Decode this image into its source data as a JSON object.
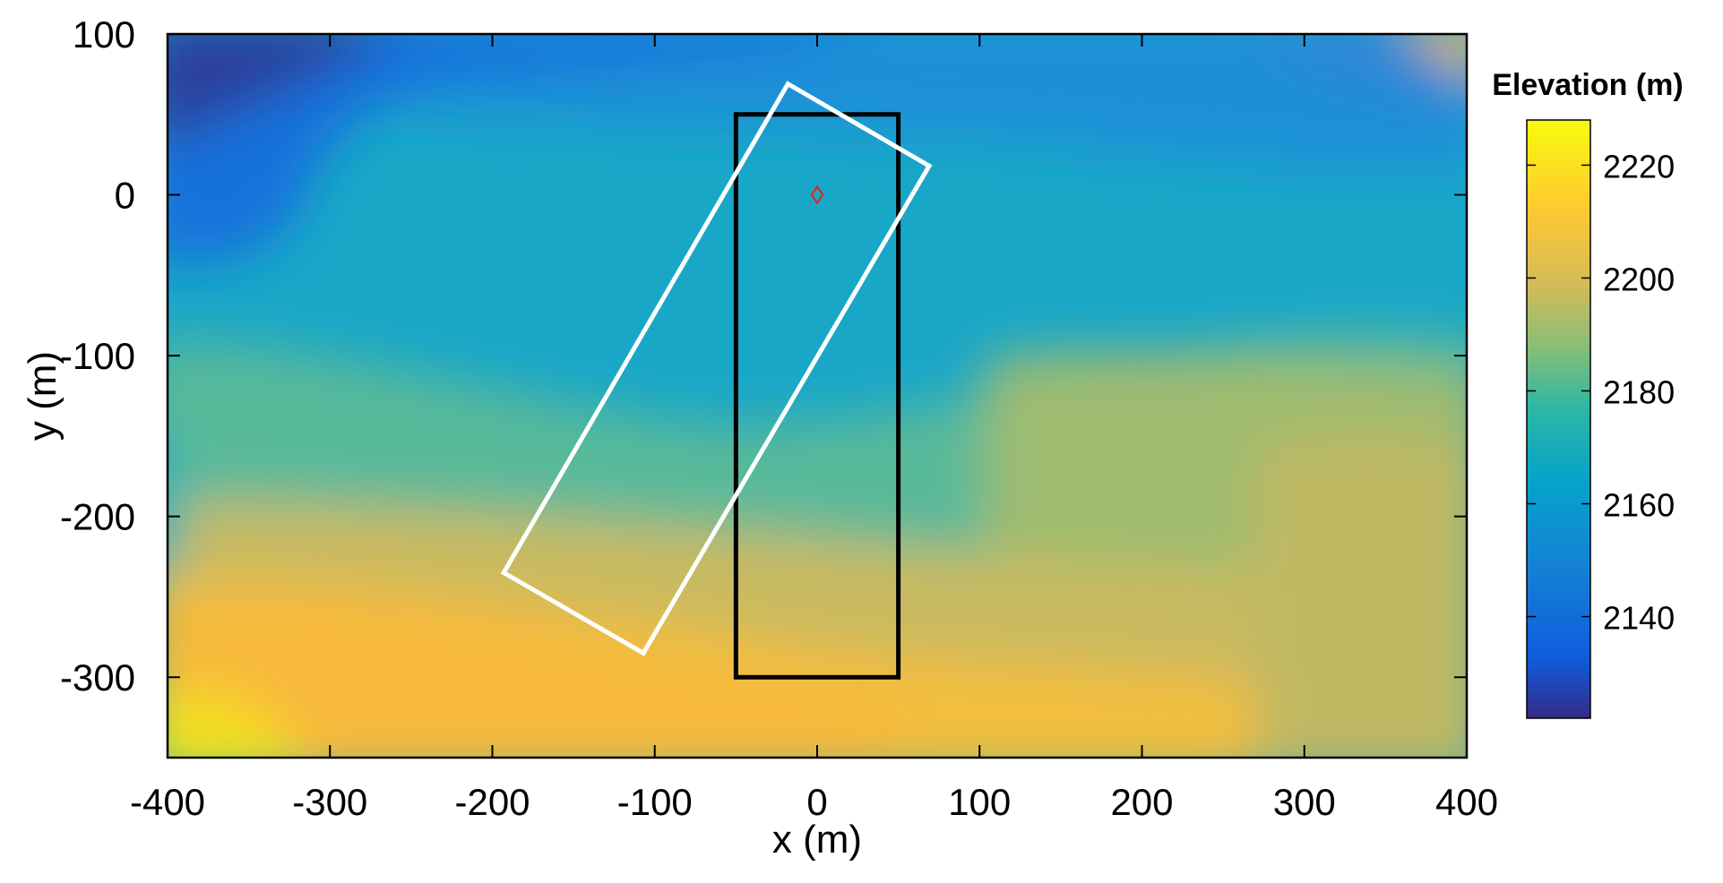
{
  "chart_data": {
    "type": "heatmap",
    "xlabel": "x (m)",
    "ylabel": "y (m)",
    "xlim": [
      -400,
      400
    ],
    "ylim": [
      -350,
      100
    ],
    "xticks": [
      -400,
      -300,
      -200,
      -100,
      0,
      100,
      200,
      300,
      400
    ],
    "yticks": [
      100,
      0,
      -100,
      -200,
      -300
    ],
    "colorbar": {
      "title": "Elevation (m)",
      "range": [
        2122,
        2228
      ],
      "ticks": [
        2140,
        2160,
        2180,
        2200,
        2220
      ],
      "colors": [
        "#352a87",
        "#0f5cdd",
        "#1481d6",
        "#06a4ca",
        "#2eb7a4",
        "#87bf77",
        "#d1bb59",
        "#fec832",
        "#f9fb0e"
      ]
    },
    "field_description_points": [
      {
        "x": -380,
        "y": 90,
        "z": 2128
      },
      {
        "x": -300,
        "y": 0,
        "z": 2140
      },
      {
        "x": 0,
        "y": 0,
        "z": 2162
      },
      {
        "x": 0,
        "y": -150,
        "z": 2172
      },
      {
        "x": 300,
        "y": -100,
        "z": 2188
      },
      {
        "x": 0,
        "y": -300,
        "z": 2200
      },
      {
        "x": -360,
        "y": -340,
        "z": 2224
      },
      {
        "x": 390,
        "y": 95,
        "z": 2205
      }
    ],
    "overlays": [
      {
        "name": "black-rectangle",
        "color": "#000000",
        "points": [
          [
            -50,
            50
          ],
          [
            50,
            50
          ],
          [
            50,
            -300
          ],
          [
            -50,
            -300
          ]
        ]
      },
      {
        "name": "white-rotated-rectangle",
        "color": "#ffffff",
        "points": [
          [
            -18,
            69
          ],
          [
            69,
            18
          ],
          [
            -107,
            -285
          ],
          [
            -193,
            -235
          ]
        ]
      },
      {
        "name": "origin-marker",
        "color": "#e8201a",
        "shape": "diamond",
        "x": 0,
        "y": 0
      }
    ]
  }
}
